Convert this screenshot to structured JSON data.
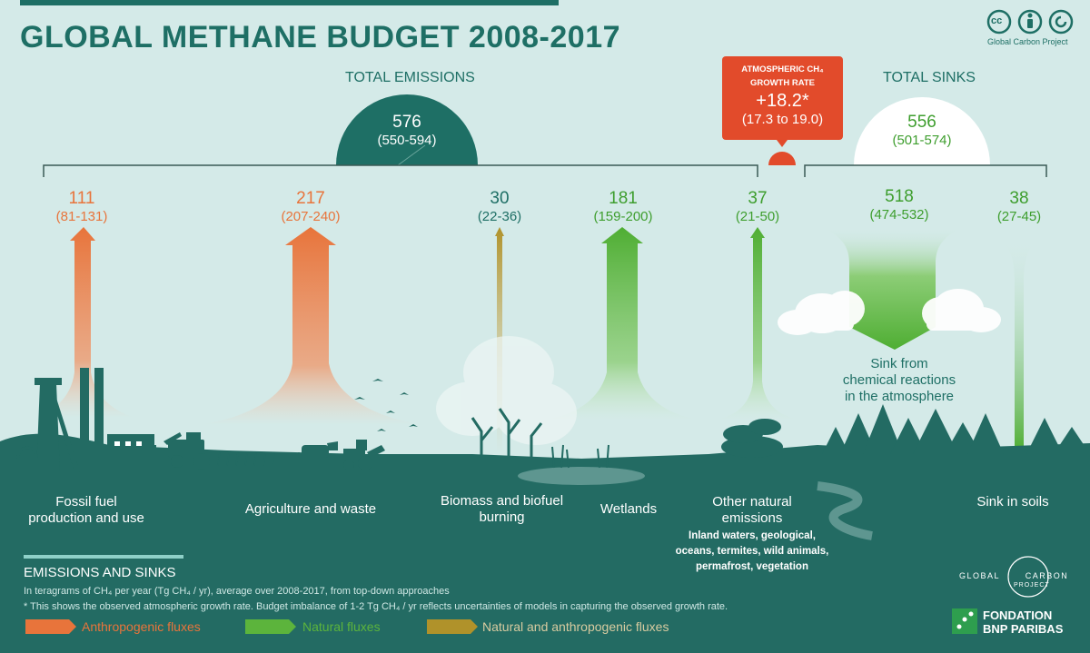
{
  "title": "GLOBAL METHANE BUDGET 2008-2017",
  "top_right": {
    "icons": [
      "cc-icon",
      "attribution-icon",
      "share-alike-icon"
    ],
    "cc_glyph": "cc",
    "label": "Global Carbon Project"
  },
  "emissions": {
    "heading": "TOTAL EMISSIONS",
    "value": "576",
    "range": "(550-594)"
  },
  "growth": {
    "label_line1": "ATMOSPHERIC CH₄",
    "label_line2": "GROWTH RATE",
    "value": "+18.2*",
    "range": "(17.3 to 19.0)"
  },
  "sinks": {
    "heading": "TOTAL SINKS",
    "value": "556",
    "range": "(501-574)"
  },
  "sources": [
    {
      "value": "111",
      "range": "(81-131)",
      "type": "anthropogenic",
      "label_lines": [
        "Fossil fuel",
        "production and use"
      ]
    },
    {
      "value": "217",
      "range": "(207-240)",
      "type": "anthropogenic",
      "label_lines": [
        "Agriculture and waste"
      ]
    },
    {
      "value": "30",
      "range": "(22-36)",
      "type": "mixed",
      "label_lines": [
        "Biomass and biofuel",
        "burning"
      ]
    },
    {
      "value": "181",
      "range": "(159-200)",
      "type": "natural",
      "label_lines": [
        "Wetlands"
      ]
    },
    {
      "value": "37",
      "range": "(21-50)",
      "type": "natural",
      "label_lines": [
        "Other natural",
        "emissions"
      ],
      "detail_lines": [
        "Inland waters, geological,",
        "oceans, termites, wild animals,",
        "permafrost, vegetation"
      ]
    }
  ],
  "sink_items": [
    {
      "value": "518",
      "range": "(474-532)",
      "label_lines": [
        "Sink from",
        "chemical reactions",
        "in the atmosphere"
      ]
    },
    {
      "value": "38",
      "range": "(27-45)",
      "label_lines": [
        "Sink in soils"
      ]
    }
  ],
  "footer": {
    "heading": "EMISSIONS AND SINKS",
    "note1": "In teragrams of CH₄ per year (Tg CH₄ / yr), average over 2008-2017, from top-down approaches",
    "note2": "* This shows the observed atmospheric growth rate. Budget imbalance of 1-2 Tg  CH₄ / yr reflects uncertainties of models in capturing the observed growth rate."
  },
  "legend": [
    {
      "label": "Anthropogenic fluxes",
      "color": "#e8743b"
    },
    {
      "label": "Natural fluxes",
      "color": "#5cb43c"
    },
    {
      "label": "Natural and anthropogenic fluxes",
      "color": "#b0922a"
    }
  ],
  "logos": {
    "gcp_line1": "GLOBAL",
    "gcp_line2": "CARBON",
    "gcp_line3": "PROJECT",
    "bnp_line1": "FONDATION",
    "bnp_line2": "BNP PARIBAS"
  },
  "colors": {
    "background": "#d4eae8",
    "ground": "#236b63",
    "anthropogenic": "#e8743b",
    "natural": "#5cb43c",
    "mixed": "#b0922a",
    "growth_box": "#e24b2b",
    "title": "#1e6f65"
  }
}
